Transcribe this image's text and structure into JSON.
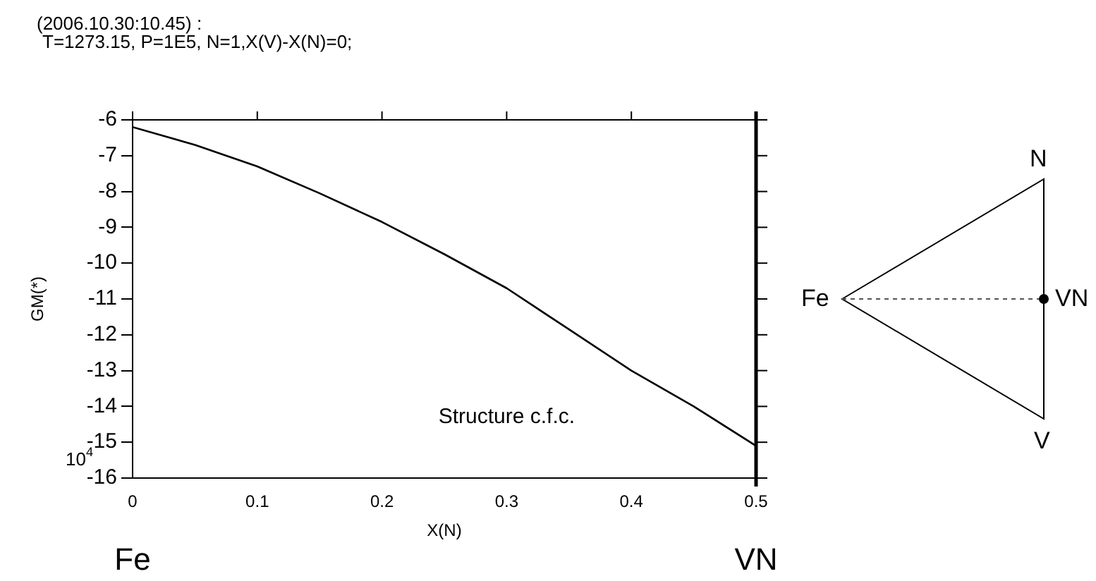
{
  "chart_data": {
    "type": "line",
    "title": "(2006.10.30:10.45) :",
    "subtitle": "T=1273.15, P=1E5, N=1,X(V)-X(N)=0;",
    "xlabel": "X(N)",
    "ylabel": "GM(*)",
    "x": [
      0,
      0.05,
      0.1,
      0.15,
      0.2,
      0.25,
      0.3,
      0.35,
      0.4,
      0.45,
      0.5
    ],
    "series": [
      {
        "color": "#000000",
        "values": [
          -6.2,
          -6.7,
          -7.3,
          -8.05,
          -8.85,
          -9.75,
          -10.7,
          -11.85,
          -13.0,
          -14.0,
          -15.1
        ]
      }
    ],
    "xlim": [
      0,
      0.5
    ],
    "xticks": [
      0,
      0.1,
      0.2,
      0.3,
      0.4,
      0.5
    ],
    "ylim": [
      -16,
      -6
    ],
    "yticks": [
      -16,
      -15,
      -14,
      -13,
      -12,
      -11,
      -10,
      -9,
      -8,
      -7,
      -6
    ],
    "grid": false,
    "legend": false,
    "marker": "none",
    "line_style": "solid",
    "annotations": [
      "Structure c.f.c.",
      "10$^{4}$",
      "Fe",
      "VN",
      "N",
      "Fe",
      "VN",
      "V"
    ]
  }
}
